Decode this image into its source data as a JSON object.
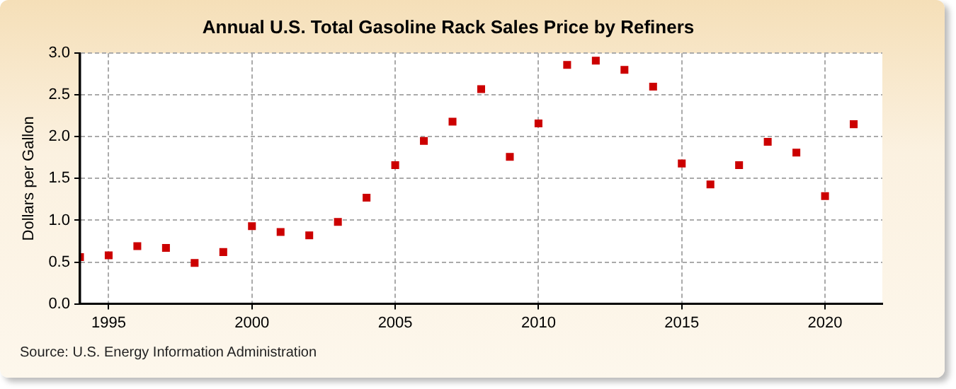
{
  "chart_data": {
    "type": "scatter",
    "title": "Annual U.S. Total Gasoline Rack Sales Price by Refiners",
    "ylabel": "Dollars per Gallon",
    "annotations": [
      "Source: U.S. Energy Information Administration"
    ],
    "x": [
      1994,
      1995,
      1996,
      1997,
      1998,
      1999,
      2000,
      2001,
      2002,
      2003,
      2004,
      2005,
      2006,
      2007,
      2008,
      2009,
      2010,
      2011,
      2012,
      2013,
      2014,
      2015,
      2016,
      2017,
      2018,
      2019,
      2020,
      2021
    ],
    "series": [
      {
        "color": "#cc0000",
        "values": [
          0.56,
          0.58,
          0.69,
          0.67,
          0.49,
          0.62,
          0.93,
          0.86,
          0.82,
          0.98,
          1.27,
          1.66,
          1.95,
          2.18,
          2.57,
          1.76,
          2.16,
          2.86,
          2.91,
          2.8,
          2.6,
          1.68,
          1.43,
          1.66,
          1.94,
          1.81,
          1.29,
          2.15
        ]
      }
    ],
    "xlim": [
      1994,
      2022
    ],
    "xticks": [
      1995,
      2000,
      2005,
      2010,
      2015,
      2020
    ],
    "ylim": [
      0,
      3
    ],
    "yticks": [
      {
        "value": 0,
        "label": "0.0"
      },
      {
        "value": 0.5,
        "label": "0.5"
      },
      {
        "value": 1,
        "label": "1.0"
      },
      {
        "value": 1.5,
        "label": "1.5"
      },
      {
        "value": 2,
        "label": "2.0"
      },
      {
        "value": 2.5,
        "label": "2.5"
      },
      {
        "value": 3,
        "label": "3.0"
      }
    ],
    "grid": true,
    "marker": "square",
    "legend": false
  }
}
